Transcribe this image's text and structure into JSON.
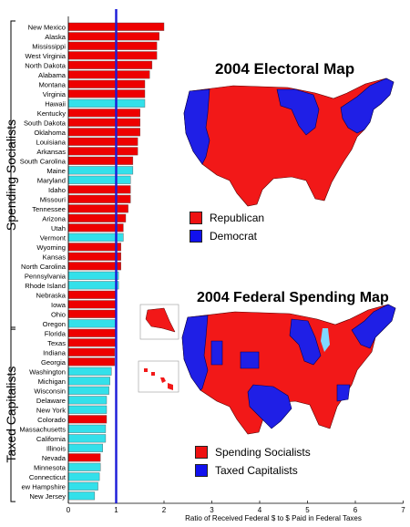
{
  "colors": {
    "red": "#ee0000",
    "cyan": "#33e0ea",
    "blue": "#1010ee",
    "refline": "#1a1ad8",
    "map_red": "#f21818",
    "map_blue": "#1f1fe6"
  },
  "chart_data": {
    "type": "bar",
    "orientation": "horizontal",
    "xlabel": "Ratio of Received Federal $ to $ Paid in Federal Taxes",
    "xlim": [
      0,
      7
    ],
    "xticks": [
      0,
      1,
      2,
      3,
      4,
      5,
      6,
      7
    ],
    "reference_line": 1,
    "grid": false,
    "categories": [
      "New Mexico",
      "Alaska",
      "Mississippi",
      "West Virginia",
      "North Dakota",
      "Alabama",
      "Montana",
      "Virginia",
      "Hawaii",
      "Kentucky",
      "South Dakota",
      "Oklahoma",
      "Louisiana",
      "Arkansas",
      "South Carolina",
      "Maine",
      "Maryland",
      "Idaho",
      "Missouri",
      "Tennessee",
      "Arizona",
      "Utah",
      "Vermont",
      "Wyoming",
      "Kansas",
      "North Carolina",
      "Pennsylvania",
      "Rhode Island",
      "Nebraska",
      "Iowa",
      "Ohio",
      "Oregon",
      "Florida",
      "Texas",
      "Indiana",
      "Georgia",
      "Washington",
      "Michigan",
      "Wisconsin",
      "Delaware",
      "New York",
      "Colorado",
      "Massachusetts",
      "California",
      "Illinois",
      "Nevada",
      "Minnesota",
      "Connecticut",
      "ew Hampshire",
      "New Jersey"
    ],
    "values": [
      2.0,
      1.9,
      1.85,
      1.85,
      1.75,
      1.7,
      1.6,
      1.6,
      1.6,
      1.5,
      1.5,
      1.5,
      1.45,
      1.45,
      1.35,
      1.35,
      1.3,
      1.3,
      1.3,
      1.25,
      1.2,
      1.15,
      1.15,
      1.1,
      1.1,
      1.1,
      1.05,
      1.05,
      1.0,
      1.0,
      1.0,
      0.98,
      0.98,
      0.98,
      0.97,
      0.97,
      0.9,
      0.87,
      0.85,
      0.8,
      0.8,
      0.8,
      0.78,
      0.78,
      0.72,
      0.67,
      0.67,
      0.65,
      0.62,
      0.55
    ],
    "party_2004": [
      "R",
      "R",
      "R",
      "R",
      "R",
      "R",
      "R",
      "R",
      "D",
      "R",
      "R",
      "R",
      "R",
      "R",
      "R",
      "D",
      "D",
      "R",
      "R",
      "R",
      "R",
      "R",
      "D",
      "R",
      "R",
      "R",
      "D",
      "D",
      "R",
      "R",
      "R",
      "D",
      "R",
      "R",
      "R",
      "R",
      "D",
      "D",
      "D",
      "D",
      "D",
      "R",
      "D",
      "D",
      "D",
      "R",
      "D",
      "D",
      "D",
      "D"
    ],
    "group_labels": [
      "Spending Socialists",
      "Taxed Capitalists"
    ]
  },
  "maps": {
    "electoral": {
      "title": "2004 Electoral Map",
      "legend": [
        {
          "label": "Republican",
          "color": "#ee1111"
        },
        {
          "label": "Democrat",
          "color": "#1111ee"
        }
      ]
    },
    "spending": {
      "title": "2004 Federal Spending Map",
      "legend": [
        {
          "label": "Spending Socialists",
          "color": "#ee1111"
        },
        {
          "label": "Taxed Capitalists",
          "color": "#1111ee"
        }
      ]
    }
  }
}
